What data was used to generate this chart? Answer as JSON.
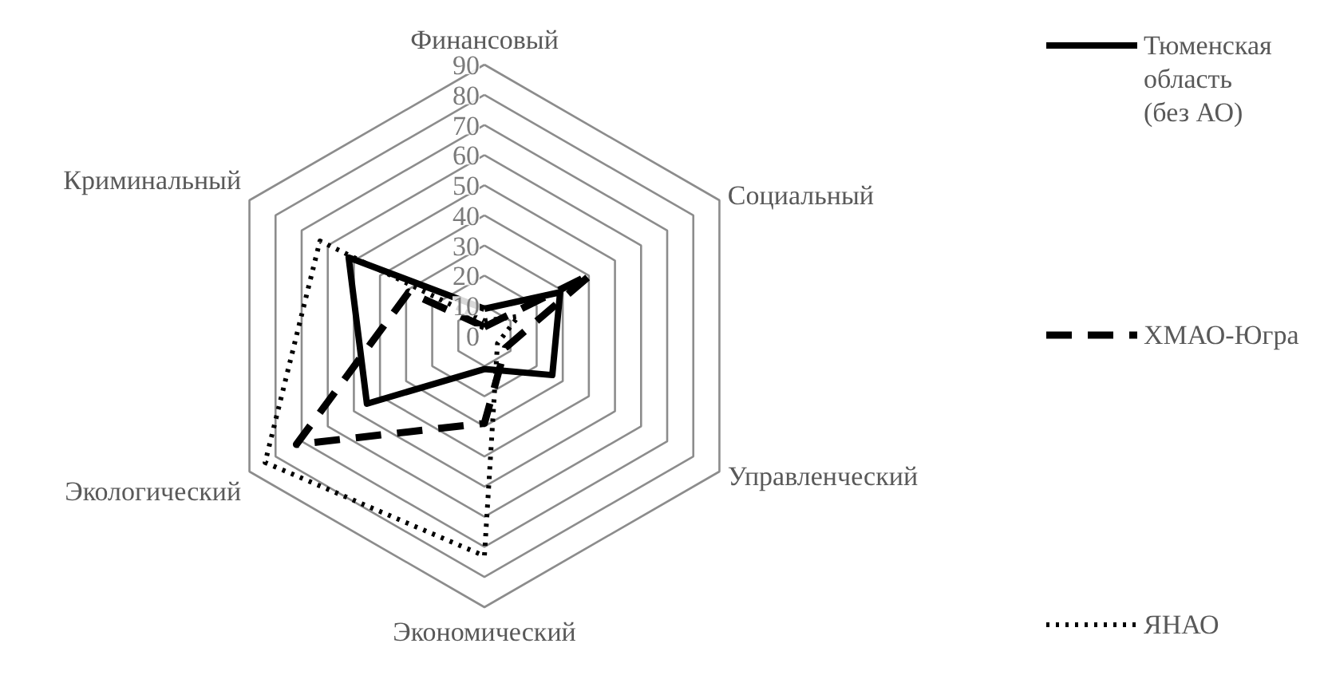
{
  "chart_data": {
    "type": "radar",
    "categories": [
      "Финансовый",
      "Социальный",
      "Управленческий",
      "Экономический",
      "Экологический",
      "Криминальный"
    ],
    "series": [
      {
        "name": "Тюменская область (без АО)",
        "color": "#000000",
        "line_style": "solid",
        "values": [
          9,
          29,
          26,
          11,
          45,
          52
        ]
      },
      {
        "name": "ХМАО-Югра",
        "color": "#000000",
        "line_style": "dashed",
        "values": [
          3,
          41,
          8,
          29,
          72,
          29
        ]
      },
      {
        "name": "ЯНАО",
        "color": "#000000",
        "line_style": "dotted",
        "values": [
          5,
          13,
          5,
          73,
          84,
          63
        ]
      }
    ],
    "ylim": [
      0,
      90
    ],
    "yticks": [
      0,
      10,
      20,
      30,
      40,
      50,
      60,
      70,
      80,
      90
    ],
    "grid": true,
    "legend": "right",
    "marker": "none"
  }
}
